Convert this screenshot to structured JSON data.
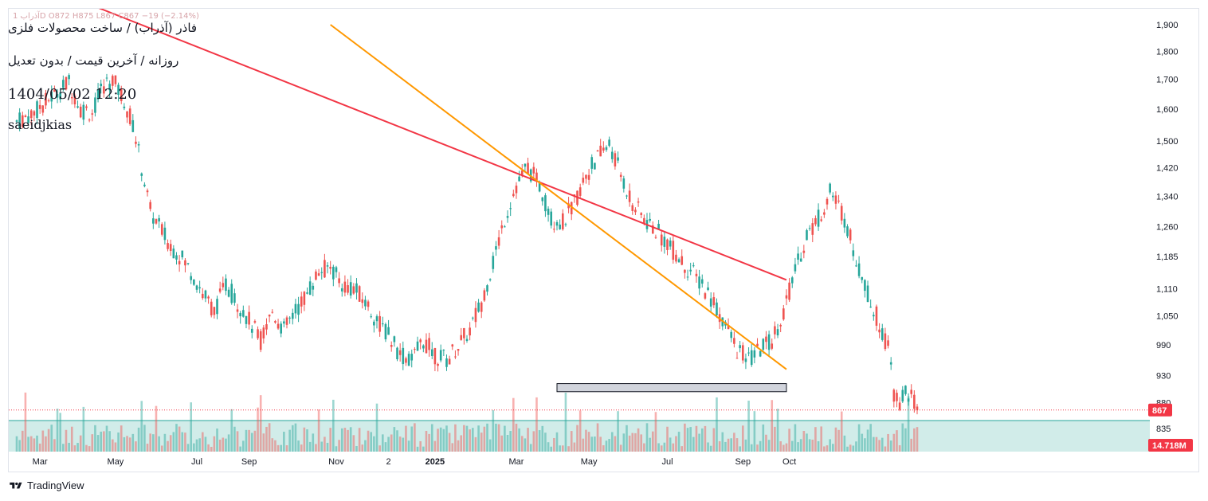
{
  "header": {
    "top_line": "آذراب 1D O872 H875 L867 C867 −19 (−2.14%)",
    "symbol_title": "فاذر (آذراب) / ساخت محصولات فلزی",
    "subtitle": "روزانه / آخرین قیمت / بدون تعدیل",
    "datetime": "1404/05/02 12:20",
    "author": "saeidjkias"
  },
  "brand": {
    "name": "TradingView"
  },
  "colors": {
    "up": "#26a69a",
    "down": "#ef5350",
    "trendline_red": "#f23645",
    "trendline_orange": "#ff9800",
    "volume_band": "#b2dfdb",
    "price_line": "#f23645",
    "zone_fill": "#d1d4dc"
  },
  "chart_data": {
    "type": "candlestick",
    "x_tick_labels": [
      "Mar",
      "May",
      "Jul",
      "Sep",
      "Nov",
      "2",
      "2025",
      "Mar",
      "May",
      "Jul",
      "Sep",
      "Oct"
    ],
    "y_tick_labels": [
      "1,900",
      "1,800",
      "1,700",
      "1,600",
      "1,500",
      "1,420",
      "1,340",
      "1,260",
      "1,185",
      "1,110",
      "1,050",
      "990",
      "930",
      "880",
      "835"
    ],
    "y_ticks": [
      1900,
      1800,
      1700,
      1600,
      1500,
      1420,
      1340,
      1260,
      1185,
      1110,
      1050,
      990,
      930,
      880,
      835
    ],
    "y_scale": "log",
    "ylim": [
      792,
      1945
    ],
    "last_price": 867,
    "last_price_label": "867",
    "volume_label": "14.718M",
    "zone": {
      "from_index": 186,
      "to_index": 265,
      "low": 900,
      "high": 915
    },
    "trendlines": [
      {
        "name": "",
        "color": "red",
        "from": [
          0,
          2100
        ],
        "to": [
          265,
          1130
        ]
      },
      {
        "name": "",
        "color": "orange",
        "from": [
          108,
          1900
        ],
        "to": [
          265,
          942
        ]
      }
    ],
    "price_anchors": [
      [
        0,
        1560
      ],
      [
        6,
        1590
      ],
      [
        12,
        1640
      ],
      [
        18,
        1690
      ],
      [
        22,
        1600
      ],
      [
        26,
        1590
      ],
      [
        30,
        1680
      ],
      [
        33,
        1700
      ],
      [
        37,
        1630
      ],
      [
        40,
        1550
      ],
      [
        43,
        1420
      ],
      [
        46,
        1300
      ],
      [
        49,
        1260
      ],
      [
        52,
        1220
      ],
      [
        56,
        1190
      ],
      [
        60,
        1150
      ],
      [
        64,
        1100
      ],
      [
        68,
        1060
      ],
      [
        72,
        1120
      ],
      [
        76,
        1080
      ],
      [
        80,
        1040
      ],
      [
        84,
        1000
      ],
      [
        88,
        1060
      ],
      [
        92,
        1020
      ],
      [
        96,
        1060
      ],
      [
        100,
        1100
      ],
      [
        104,
        1150
      ],
      [
        108,
        1160
      ],
      [
        112,
        1120
      ],
      [
        116,
        1110
      ],
      [
        120,
        1080
      ],
      [
        124,
        1040
      ],
      [
        128,
        1010
      ],
      [
        132,
        970
      ],
      [
        136,
        960
      ],
      [
        140,
        1000
      ],
      [
        144,
        970
      ],
      [
        148,
        960
      ],
      [
        152,
        990
      ],
      [
        156,
        1020
      ],
      [
        160,
        1080
      ],
      [
        164,
        1170
      ],
      [
        168,
        1280
      ],
      [
        172,
        1370
      ],
      [
        176,
        1420
      ],
      [
        180,
        1370
      ],
      [
        184,
        1280
      ],
      [
        188,
        1270
      ],
      [
        192,
        1320
      ],
      [
        196,
        1400
      ],
      [
        200,
        1450
      ],
      [
        204,
        1490
      ],
      [
        208,
        1400
      ],
      [
        212,
        1320
      ],
      [
        216,
        1280
      ],
      [
        220,
        1250
      ],
      [
        224,
        1220
      ],
      [
        228,
        1180
      ],
      [
        232,
        1150
      ],
      [
        236,
        1120
      ],
      [
        240,
        1080
      ],
      [
        244,
        1030
      ],
      [
        248,
        980
      ],
      [
        252,
        960
      ],
      [
        256,
        980
      ],
      [
        260,
        1000
      ],
      [
        264,
        1060
      ],
      [
        268,
        1150
      ],
      [
        272,
        1240
      ],
      [
        276,
        1280
      ],
      [
        280,
        1350
      ],
      [
        284,
        1300
      ],
      [
        286,
        1260
      ],
      [
        288,
        1200
      ],
      [
        290,
        1160
      ],
      [
        292,
        1120
      ],
      [
        294,
        1080
      ],
      [
        296,
        1050
      ],
      [
        298,
        1020
      ],
      [
        300,
        980
      ],
      [
        302,
        900
      ],
      [
        304,
        880
      ],
      [
        306,
        900
      ],
      [
        308,
        890
      ],
      [
        310,
        867
      ]
    ],
    "n_candles": 311,
    "x_tick_positions": [
      8,
      34,
      62,
      80,
      110,
      128,
      144,
      172,
      197,
      224,
      250,
      266
    ]
  }
}
